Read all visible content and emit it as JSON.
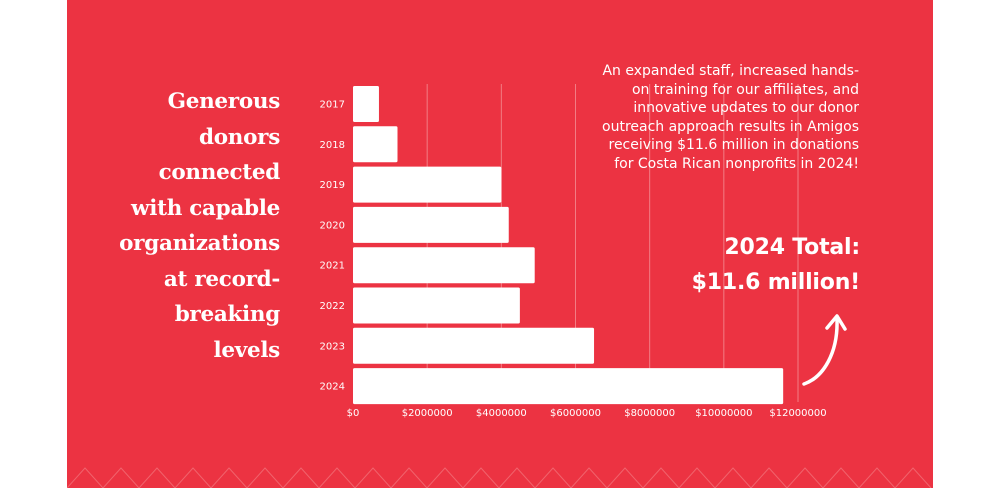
{
  "headline": [
    "Generous",
    "donors",
    "connected",
    "with capable",
    "organizations",
    "at record-",
    "breaking",
    "levels"
  ],
  "blurb": "An expanded staff, increased hands-on training for our affiliates, and innovative updates to our donor outreach approach results in Amigos receiving $11.6 million in donations for Costa Rican nonprofits in 2024!",
  "total": {
    "line1": "2024 Total:",
    "line2": "$11.6 million!"
  },
  "colors": {
    "background": "#ec3342",
    "bars": "#ffffff",
    "text": "#ffffff"
  },
  "chart_data": {
    "type": "bar",
    "orientation": "horizontal",
    "categories": [
      "2017",
      "2018",
      "2019",
      "2020",
      "2021",
      "2022",
      "2023",
      "2024"
    ],
    "values": [
      700000,
      1200000,
      4000000,
      4200000,
      4900000,
      4500000,
      6500000,
      11600000
    ],
    "xlim": [
      0,
      12000000
    ],
    "xticks": [
      0,
      2000000,
      4000000,
      6000000,
      8000000,
      10000000,
      12000000
    ],
    "xtick_labels": [
      "$0",
      "$2000000",
      "$4000000",
      "$6000000",
      "$8000000",
      "$10000000",
      "$12000000"
    ],
    "grid": "vertical",
    "title": "",
    "xlabel": "",
    "ylabel": ""
  }
}
